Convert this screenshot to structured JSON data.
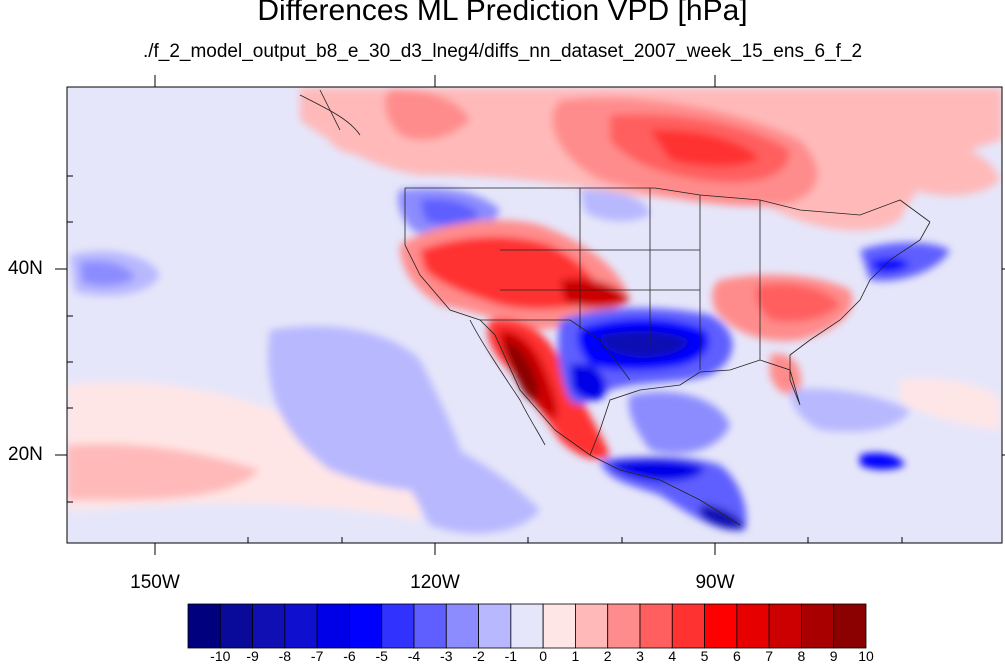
{
  "title": "Differences ML Prediction VPD [hPa]",
  "subtitle": "./f_2_model_output_b8_e_30_d3_lneg4/diffs_nn_dataset_2007_week_15_ens_6_f_2",
  "lat_labels": [
    {
      "text": "40N",
      "value": 40
    },
    {
      "text": "20N",
      "value": 20
    }
  ],
  "lon_labels": [
    {
      "text": "150W",
      "value": -150
    },
    {
      "text": "120W",
      "value": -120
    },
    {
      "text": "90W",
      "value": -90
    }
  ],
  "colorbar": {
    "labels": [
      "-10",
      "-9",
      "-8",
      "-7",
      "-6",
      "-5",
      "-4",
      "-3",
      "-2",
      "-1",
      "0",
      "1",
      "2",
      "3",
      "4",
      "5",
      "6",
      "7",
      "8",
      "9",
      "10"
    ],
    "colors": [
      "#00007f",
      "#0a0a9a",
      "#0f0fb4",
      "#0f0fd0",
      "#0000e8",
      "#0000ff",
      "#3232ff",
      "#5f5fff",
      "#8c8cff",
      "#b8b8ff",
      "#e6e6fa",
      "#ffe6e6",
      "#ffb9b9",
      "#ff8c8c",
      "#ff5f5f",
      "#ff3232",
      "#ff0000",
      "#e60000",
      "#cc0000",
      "#a80000",
      "#8b0000"
    ]
  },
  "chart_data": {
    "type": "heatmap",
    "title": "Differences ML Prediction VPD [hPa]",
    "subtitle": "./f_2_model_output_b8_e_30_d3_lneg4/diffs_nn_dataset_2007_week_15_ens_6_f_2",
    "lon_range": [
      -160,
      -60
    ],
    "lat_range": [
      10,
      60
    ],
    "value_range": [
      -10,
      10
    ],
    "features": [
      {
        "region": "Mexican west coast / Baja",
        "approx_value": 9
      },
      {
        "region": "Southwestern US interior",
        "approx_value": 5
      },
      {
        "region": "Central Canada",
        "approx_value": 5
      },
      {
        "region": "Southern Plains / Texas",
        "approx_value": -6
      },
      {
        "region": "Central America",
        "approx_value": -7
      },
      {
        "region": "Eastern Pacific subtropics",
        "approx_value": -2
      },
      {
        "region": "Southeast US",
        "approx_value": 4
      }
    ]
  }
}
